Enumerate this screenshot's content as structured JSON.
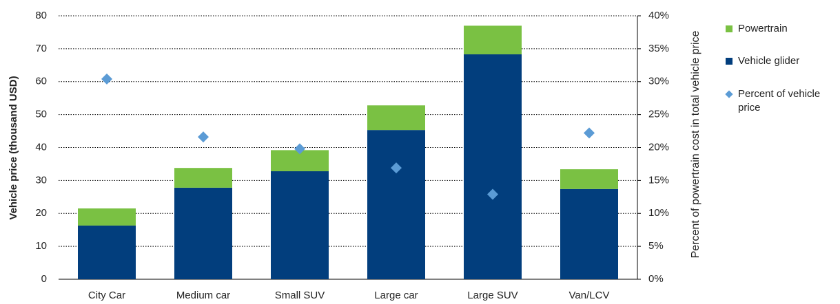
{
  "chart_data": {
    "type": "stacked-bar-scatter",
    "categories": [
      "City Car",
      "Medium car",
      "Small SUV",
      "Large car",
      "Large SUV",
      "Van/LCV"
    ],
    "series": [
      {
        "name": "Vehicle glider",
        "color": "#023e7d",
        "values": [
          16.3,
          27.8,
          32.8,
          45.3,
          68.3,
          27.4
        ]
      },
      {
        "name": "Powertrain",
        "color": "#7ac143",
        "values": [
          5.2,
          6.0,
          6.4,
          7.5,
          8.7,
          6.0
        ]
      },
      {
        "name": "Percent of vehicle price",
        "color": "#5b9bd5",
        "axis": "y2",
        "values": [
          30.4,
          21.6,
          19.8,
          16.9,
          12.9,
          22.2
        ]
      }
    ],
    "ylabel": "Vehicle price (thousand USD)",
    "y2label": "Percent of powertrain cost in total vehicle price",
    "ylim": [
      0,
      80
    ],
    "yticks": [
      0,
      10,
      20,
      30,
      40,
      50,
      60,
      70,
      80
    ],
    "y2lim": [
      0,
      40
    ],
    "y2ticks": [
      {
        "value": 0,
        "label": "0%"
      },
      {
        "value": 5,
        "label": "5%"
      },
      {
        "value": 10,
        "label": "10%"
      },
      {
        "value": 15,
        "label": "15%"
      },
      {
        "value": 20,
        "label": "20%"
      },
      {
        "value": 25,
        "label": "25%"
      },
      {
        "value": 30,
        "label": "30%"
      },
      {
        "value": 35,
        "label": "35%"
      },
      {
        "value": 40,
        "label": "40%"
      }
    ],
    "grid": true,
    "legend": "right"
  }
}
